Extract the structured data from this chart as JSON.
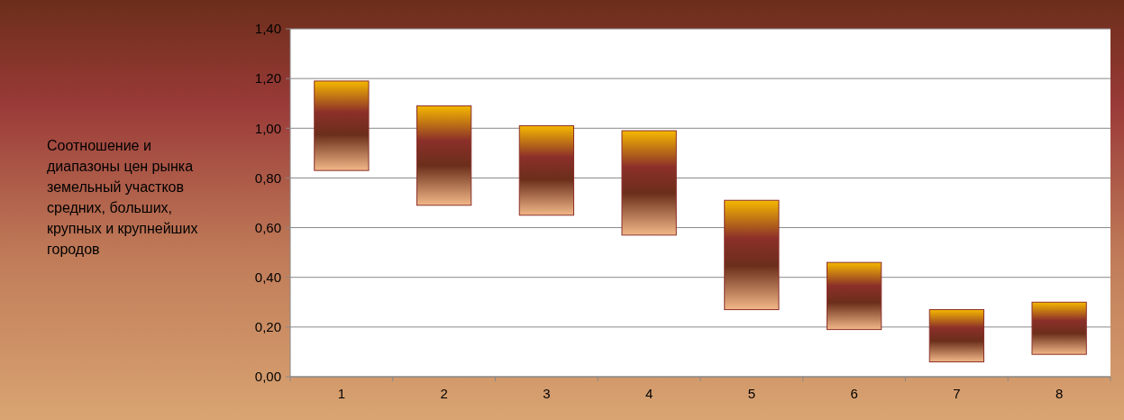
{
  "chart_data": {
    "type": "bar",
    "ylabel": "Соотношение и диапазоны цен рынка земельный участков средних, больших, крупных и крупнейших городов",
    "categories": [
      "1",
      "2",
      "3",
      "4",
      "5",
      "6",
      "7",
      "8"
    ],
    "values": [
      0.36,
      0.4,
      0.36,
      0.42,
      0.44,
      0.27,
      0.21,
      0.21
    ],
    "base": [
      0.83,
      0.69,
      0.65,
      0.57,
      0.27,
      0.19,
      0.06,
      0.09
    ],
    "color": "#8b2f2a",
    "ylim": [
      0,
      1.4
    ],
    "yticks": [
      {
        "value": 0,
        "label": "0,00"
      },
      {
        "value": 0.2,
        "label": "0,20"
      },
      {
        "value": 0.4,
        "label": "0,40"
      },
      {
        "value": 0.6,
        "label": "0,60"
      },
      {
        "value": 0.8,
        "label": "0,80"
      },
      {
        "value": 1,
        "label": "1,00"
      },
      {
        "value": 1.2,
        "label": "1,20"
      },
      {
        "value": 1.4,
        "label": "1,40"
      }
    ],
    "grid": "y"
  }
}
